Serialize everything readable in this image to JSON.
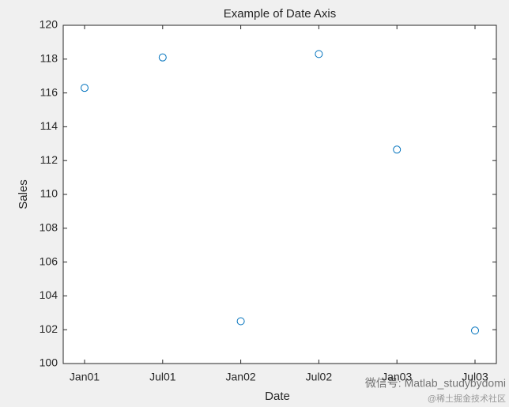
{
  "chart_data": {
    "type": "scatter",
    "title": "Example of Date Axis",
    "x_label": "Date",
    "y_label": "Sales",
    "categories": [
      "Jan01",
      "Jul01",
      "Jan02",
      "Jul02",
      "Jan03",
      "Jul03"
    ],
    "values": [
      116.3,
      118.1,
      102.5,
      118.3,
      112.65,
      101.95
    ],
    "color": "#0072bd",
    "ylim": [
      100,
      120
    ],
    "yticks": [
      100,
      102,
      104,
      106,
      108,
      110,
      112,
      114,
      116,
      118,
      120
    ],
    "grid": false
  },
  "watermark": {
    "line1": "微信号: Matlab_studybydomi",
    "line2": "@稀土掘金技术社区"
  }
}
